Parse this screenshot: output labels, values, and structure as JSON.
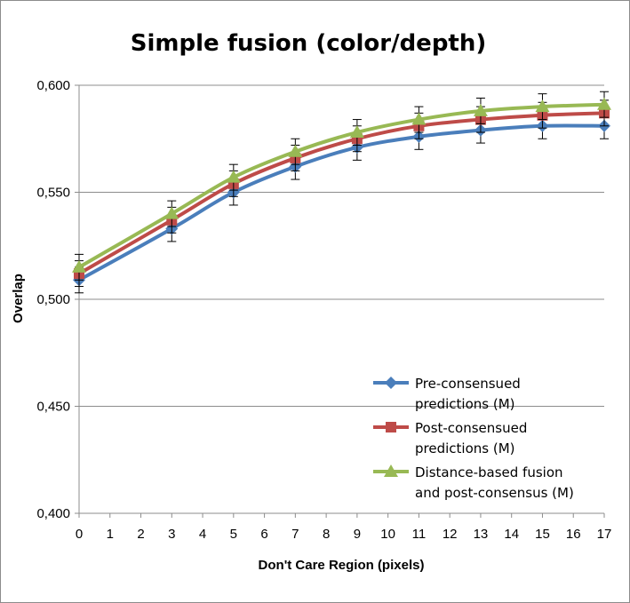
{
  "chart_data": {
    "type": "line",
    "title": "Simple fusion (color/depth)",
    "xlabel": "Don't Care Region (pixels)",
    "ylabel": "Overlap",
    "x_ticks": [
      0,
      1,
      2,
      3,
      4,
      5,
      6,
      7,
      8,
      9,
      10,
      11,
      12,
      13,
      14,
      15,
      16,
      17
    ],
    "y_ticks": [
      "0,400",
      "0,450",
      "0,500",
      "0,550",
      "0,600"
    ],
    "ylim": [
      0.4,
      0.6
    ],
    "xlim": [
      0,
      17
    ],
    "grid": "horizontal",
    "legend_position": "lower-right",
    "x": [
      0,
      3,
      5,
      7,
      9,
      11,
      13,
      15,
      17
    ],
    "series": [
      {
        "name": "Pre-consensued predictions (M)",
        "legend_lines": [
          "Pre-consensued",
          "predictions (M)"
        ],
        "color": "#4a7ebb",
        "marker": "diamond",
        "values": [
          0.509,
          0.533,
          0.55,
          0.562,
          0.571,
          0.576,
          0.579,
          0.581,
          0.581
        ],
        "error": [
          0.006,
          0.006,
          0.006,
          0.006,
          0.006,
          0.006,
          0.006,
          0.006,
          0.006
        ]
      },
      {
        "name": "Post-consensued predictions (M)",
        "legend_lines": [
          "Post-consensued",
          "predictions (M)"
        ],
        "color": "#be4b48",
        "marker": "square",
        "values": [
          0.512,
          0.537,
          0.554,
          0.566,
          0.575,
          0.581,
          0.584,
          0.586,
          0.587
        ],
        "error": [
          0.006,
          0.006,
          0.006,
          0.006,
          0.006,
          0.006,
          0.006,
          0.006,
          0.006
        ]
      },
      {
        "name": "Distance-based fusion and post-consensus (M)",
        "legend_lines": [
          "Distance-based fusion",
          "and post-consensus (M)"
        ],
        "color": "#98b954",
        "marker": "triangle",
        "values": [
          0.515,
          0.54,
          0.557,
          0.569,
          0.578,
          0.584,
          0.588,
          0.59,
          0.591
        ],
        "error": [
          0.006,
          0.006,
          0.006,
          0.006,
          0.006,
          0.006,
          0.006,
          0.006,
          0.006
        ]
      }
    ]
  }
}
